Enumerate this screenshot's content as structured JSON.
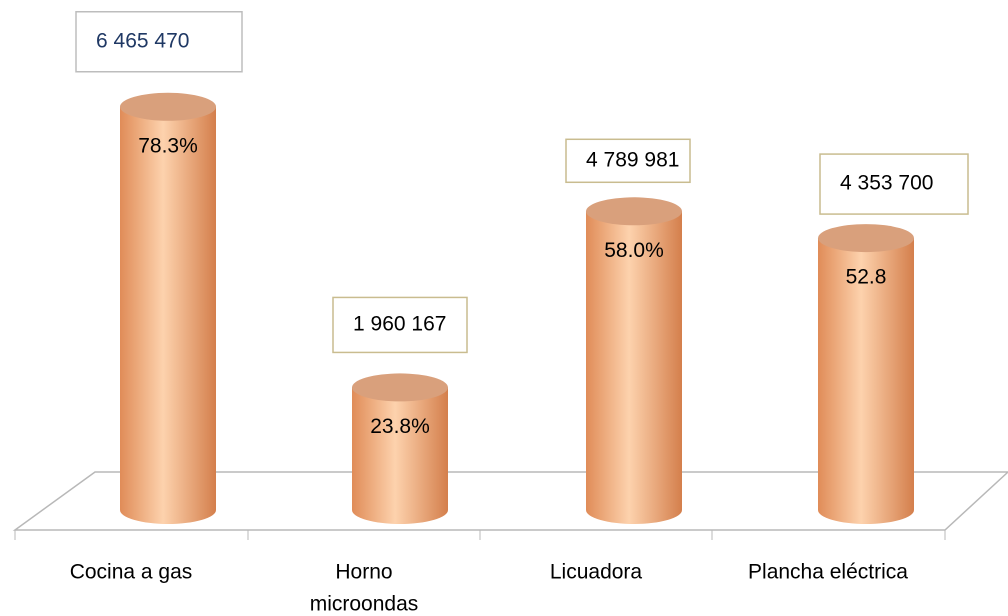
{
  "chart_data": {
    "type": "bar",
    "categories": [
      "Cocina a gas",
      [
        "Horno",
        "microondas"
      ],
      "Licuadora",
      "Plancha eléctrica"
    ],
    "values": [
      78.3,
      23.8,
      58.0,
      52.8
    ],
    "value_labels": [
      "78.3%",
      "23.8%",
      "58.0%",
      "52.8"
    ],
    "annotations": [
      "6 465 470",
      "1 960 167",
      "4 789 981",
      "4 353 700"
    ],
    "color": "#f0a878"
  }
}
